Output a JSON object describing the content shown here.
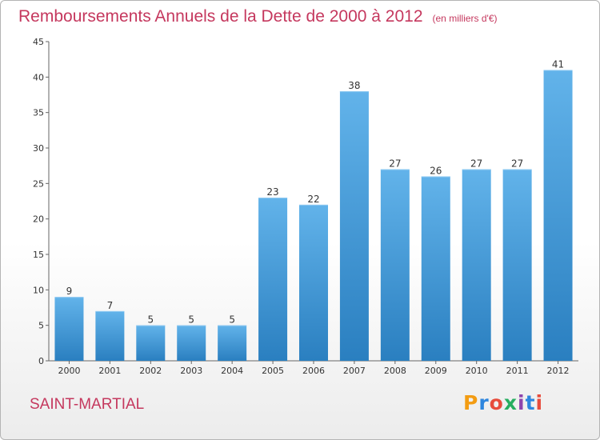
{
  "header": {
    "title": "Remboursements Annuels de la Dette de 2000 à 2012",
    "unit": "(en milliers d'€)"
  },
  "footer": {
    "commune": "SAINT-MARTIAL",
    "logo_text": "Proxiti",
    "logo_colors": [
      "#f39c12",
      "#2e86de",
      "#e74c3c",
      "#27ae60",
      "#8e44ad",
      "#2e86de",
      "#e74c3c"
    ]
  },
  "colors": {
    "bar_light": "#62b3ea",
    "bar_dark": "#2a7fc0",
    "title": "#c5385e"
  },
  "chart_data": {
    "type": "bar",
    "categories": [
      "2000",
      "2001",
      "2002",
      "2003",
      "2004",
      "2005",
      "2006",
      "2007",
      "2008",
      "2009",
      "2010",
      "2011",
      "2012"
    ],
    "values": [
      9,
      7,
      5,
      5,
      5,
      23,
      22,
      38,
      27,
      26,
      27,
      27,
      41
    ],
    "ylim": [
      0,
      45
    ],
    "yticks": [
      0,
      5,
      10,
      15,
      20,
      25,
      30,
      35,
      40,
      45
    ],
    "title": "Remboursements Annuels de la Dette de 2000 à 2012",
    "xlabel": "",
    "ylabel": "",
    "grid": false,
    "data_labels": true
  }
}
